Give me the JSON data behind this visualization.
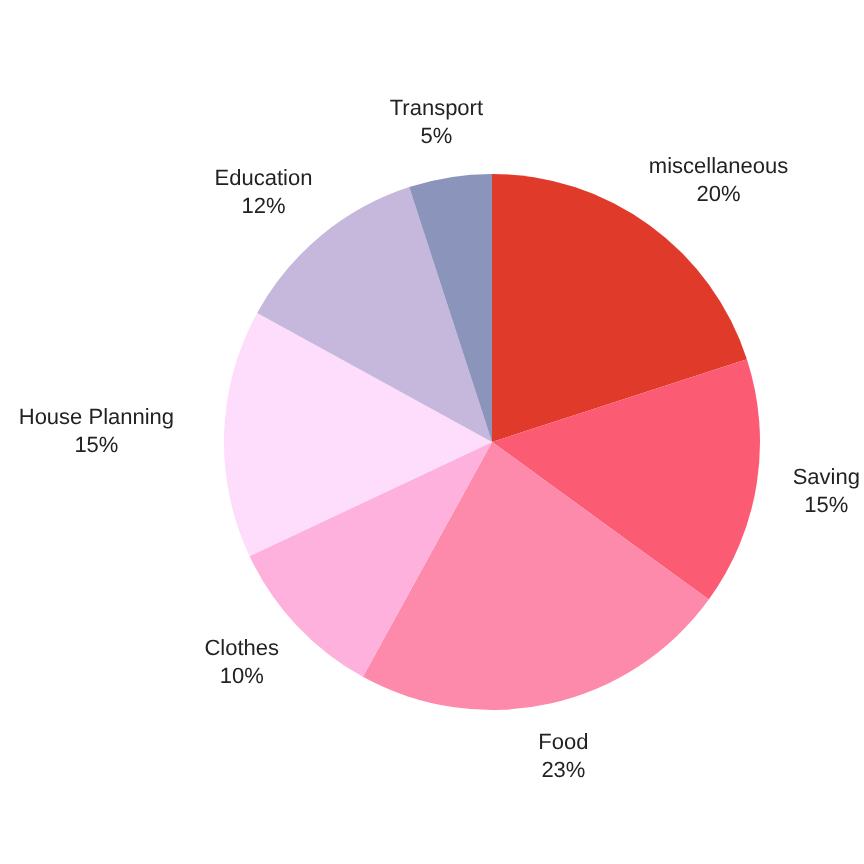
{
  "chart_data": {
    "type": "pie",
    "categories": [
      "miscellaneous",
      "Saving",
      "Food",
      "Clothes",
      "House Planning",
      "Education",
      "Transport"
    ],
    "values": [
      20,
      15,
      23,
      10,
      15,
      12,
      5
    ],
    "colors": [
      "#e03a2b",
      "#fb5b73",
      "#fd8aab",
      "#fdb1dc",
      "#fedcfb",
      "#c6b7dc",
      "#8b94ba"
    ],
    "value_labels": [
      "20%",
      "15%",
      "23%",
      "10%",
      "15%",
      "12%",
      "5%"
    ]
  }
}
